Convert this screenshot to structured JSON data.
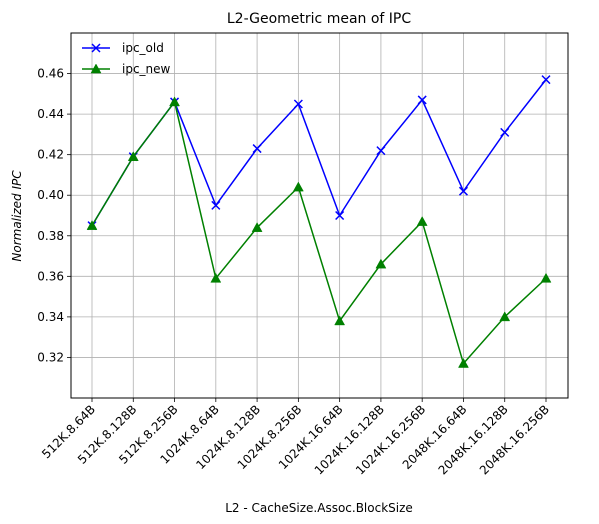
{
  "chart_data": {
    "type": "line",
    "title": "L2-Geometric mean of IPC",
    "xlabel": "L2 - CacheSize.Assoc.BlockSize",
    "ylabel": "Normalized  IPC",
    "categories": [
      "512K.8.64B",
      "512K.8.128B",
      "512K.8.256B",
      "1024K.8.64B",
      "1024K.8.128B",
      "1024K.8.256B",
      "1024K.16.64B",
      "1024K.16.128B",
      "1024K.16.256B",
      "2048K.16.64B",
      "2048K.16.128B",
      "2048K.16.256B"
    ],
    "ylim": [
      0.3,
      0.48
    ],
    "yticks": [
      0.32,
      0.34,
      0.36,
      0.38,
      0.4,
      0.42,
      0.44,
      0.46
    ],
    "ytick_labels": [
      "0.32",
      "0.34",
      "0.36",
      "0.38",
      "0.40",
      "0.42",
      "0.44",
      "0.46"
    ],
    "grid": true,
    "legend": "top-left",
    "series": [
      {
        "name": "ipc_old",
        "color": "#0000ff",
        "marker": "x",
        "values": [
          0.385,
          0.419,
          0.446,
          0.395,
          0.423,
          0.445,
          0.39,
          0.422,
          0.447,
          0.402,
          0.431,
          0.457
        ]
      },
      {
        "name": "ipc_new",
        "color": "#008000",
        "marker": "triangle",
        "values": [
          0.385,
          0.419,
          0.446,
          0.359,
          0.384,
          0.404,
          0.338,
          0.366,
          0.387,
          0.317,
          0.34,
          0.359
        ]
      }
    ]
  }
}
